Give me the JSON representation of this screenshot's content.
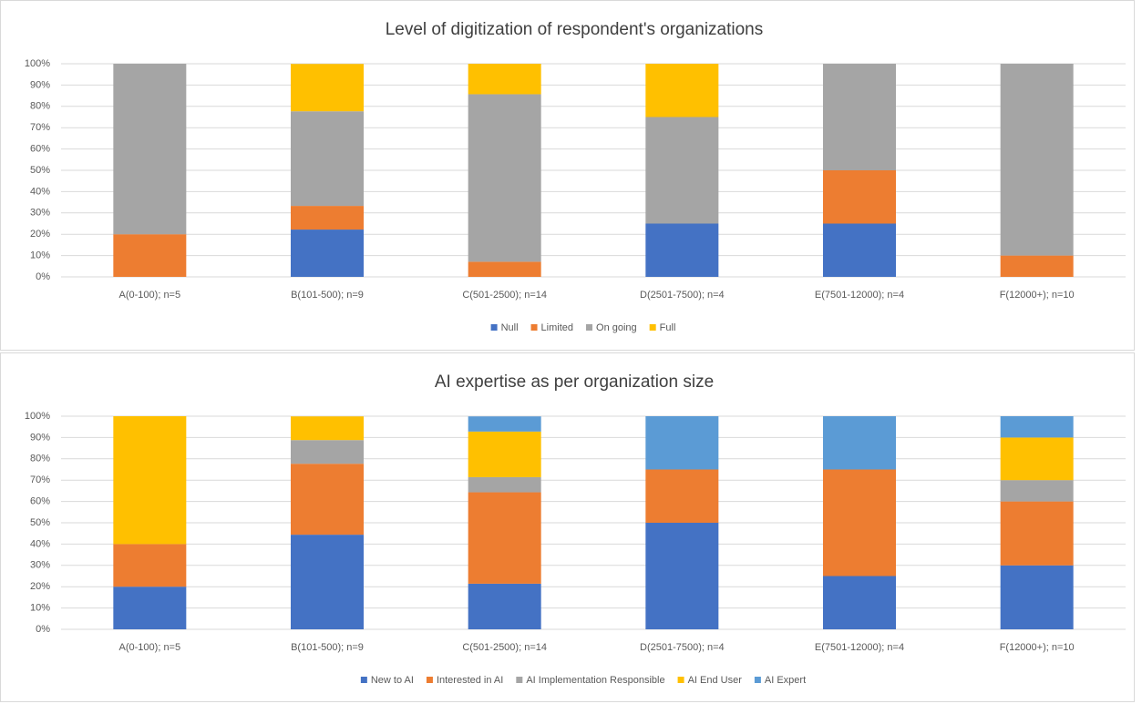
{
  "chart_data": [
    {
      "type": "stacked_bar",
      "title": "Level of digitization of respondent's organizations",
      "categories": [
        "A(0-100); n=5",
        "B(101-500); n=9",
        "C(501-2500); n=14",
        "D(2501-7500); n=4",
        "E(7501-12000); n=4",
        "F(12000+); n=10"
      ],
      "series": [
        {
          "name": "Null",
          "color": "#4472c4",
          "values": [
            0,
            22.2,
            0,
            25,
            25,
            0
          ]
        },
        {
          "name": "Limited",
          "color": "#ed7d31",
          "values": [
            20,
            11.1,
            7.1,
            0,
            25,
            10
          ]
        },
        {
          "name": "On going",
          "color": "#a5a5a5",
          "values": [
            80,
            44.4,
            78.6,
            50,
            50,
            90
          ]
        },
        {
          "name": "Full",
          "color": "#ffc000",
          "values": [
            0,
            22.2,
            14.3,
            25,
            0,
            0
          ]
        }
      ],
      "ylim": [
        0,
        100
      ],
      "yticks": [
        {
          "value": 0,
          "label": "0%"
        },
        {
          "value": 10,
          "label": "10%"
        },
        {
          "value": 20,
          "label": "20%"
        },
        {
          "value": 30,
          "label": "30%"
        },
        {
          "value": 40,
          "label": "40%"
        },
        {
          "value": 50,
          "label": "50%"
        },
        {
          "value": 60,
          "label": "60%"
        },
        {
          "value": 70,
          "label": "70%"
        },
        {
          "value": 80,
          "label": "80%"
        },
        {
          "value": 90,
          "label": "90%"
        },
        {
          "value": 100,
          "label": "100%"
        }
      ],
      "grid": true,
      "legend": "bottom"
    },
    {
      "type": "stacked_bar",
      "title": "AI expertise as per organization size",
      "categories": [
        "A(0-100); n=5",
        "B(101-500); n=9",
        "C(501-2500); n=14",
        "D(2501-7500); n=4",
        "E(7501-12000); n=4",
        "F(12000+); n=10"
      ],
      "series": [
        {
          "name": "New to AI",
          "color": "#4472c4",
          "values": [
            20,
            44.4,
            21.4,
            50,
            25,
            30
          ]
        },
        {
          "name": "Interested in AI",
          "color": "#ed7d31",
          "values": [
            20,
            33.3,
            42.9,
            25,
            50,
            30
          ]
        },
        {
          "name": "AI Implementation Responsible",
          "color": "#a5a5a5",
          "values": [
            0,
            11.1,
            7.1,
            0,
            0,
            10
          ]
        },
        {
          "name": "AI End User",
          "color": "#ffc000",
          "values": [
            60,
            11.1,
            21.4,
            0,
            0,
            20
          ]
        },
        {
          "name": "AI Expert",
          "color": "#5b9bd5",
          "values": [
            0,
            0,
            7.1,
            25,
            25,
            10
          ]
        }
      ],
      "ylim": [
        0,
        100
      ],
      "yticks": [
        {
          "value": 0,
          "label": "0%"
        },
        {
          "value": 10,
          "label": "10%"
        },
        {
          "value": 20,
          "label": "20%"
        },
        {
          "value": 30,
          "label": "30%"
        },
        {
          "value": 40,
          "label": "40%"
        },
        {
          "value": 50,
          "label": "50%"
        },
        {
          "value": 60,
          "label": "60%"
        },
        {
          "value": 70,
          "label": "70%"
        },
        {
          "value": 80,
          "label": "80%"
        },
        {
          "value": 90,
          "label": "90%"
        },
        {
          "value": 100,
          "label": "100%"
        }
      ],
      "grid": true,
      "legend": "bottom"
    }
  ]
}
